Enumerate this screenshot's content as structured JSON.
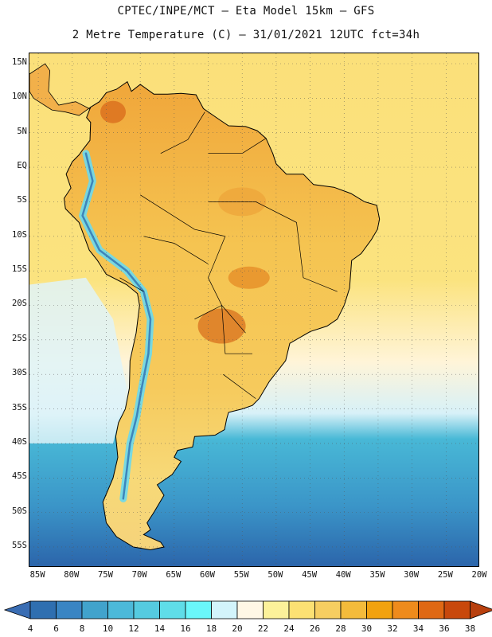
{
  "title": {
    "line1": "CPTEC/INPE/MCT –  Eta Model 15km – GFS",
    "line2": "2 Metre Temperature (C) – 31/01/2021 12UTC fct=34h"
  },
  "axes": {
    "lat_labels": [
      "15N",
      "10N",
      "5N",
      "EQ",
      "5S",
      "10S",
      "15S",
      "20S",
      "25S",
      "30S",
      "35S",
      "40S",
      "45S",
      "50S",
      "55S"
    ],
    "lat_values": [
      15,
      10,
      5,
      0,
      -5,
      -10,
      -15,
      -20,
      -25,
      -30,
      -35,
      -40,
      -45,
      -50,
      -55
    ],
    "lon_labels": [
      "85W",
      "80W",
      "75W",
      "70W",
      "65W",
      "60W",
      "55W",
      "50W",
      "45W",
      "40W",
      "35W",
      "30W",
      "25W",
      "20W"
    ],
    "lon_values": [
      -85,
      -80,
      -75,
      -70,
      -65,
      -60,
      -55,
      -50,
      -45,
      -40,
      -35,
      -30,
      -25,
      -20
    ],
    "lat_range": [
      -58,
      16.5
    ],
    "lon_range": [
      -86.3,
      -20
    ]
  },
  "colorbar": {
    "ticks": [
      "4",
      "6",
      "8",
      "10",
      "12",
      "14",
      "16",
      "18",
      "20",
      "22",
      "24",
      "26",
      "28",
      "30",
      "32",
      "34",
      "36",
      "38"
    ],
    "low_color": "#3a6db3",
    "high_color": "#b8400e",
    "colors": [
      "#2f6fb0",
      "#3a85c3",
      "#41a3cc",
      "#4cb9d9",
      "#55cbe0",
      "#5fdde8",
      "#6af6fa",
      "#d3f4fb",
      "#fff7e6",
      "#fcf19a",
      "#fce173",
      "#f6ce61",
      "#f4bb3b",
      "#f2a20f",
      "#ee8b1c",
      "#df6814",
      "#c8480c"
    ]
  },
  "map": {
    "ocean_cold": "#2b64aa",
    "ocean_mid": "#48b8d6",
    "ocean_warm": "#fbe07a",
    "land_color": "#f5c451",
    "hot_color": "#d8701d"
  }
}
